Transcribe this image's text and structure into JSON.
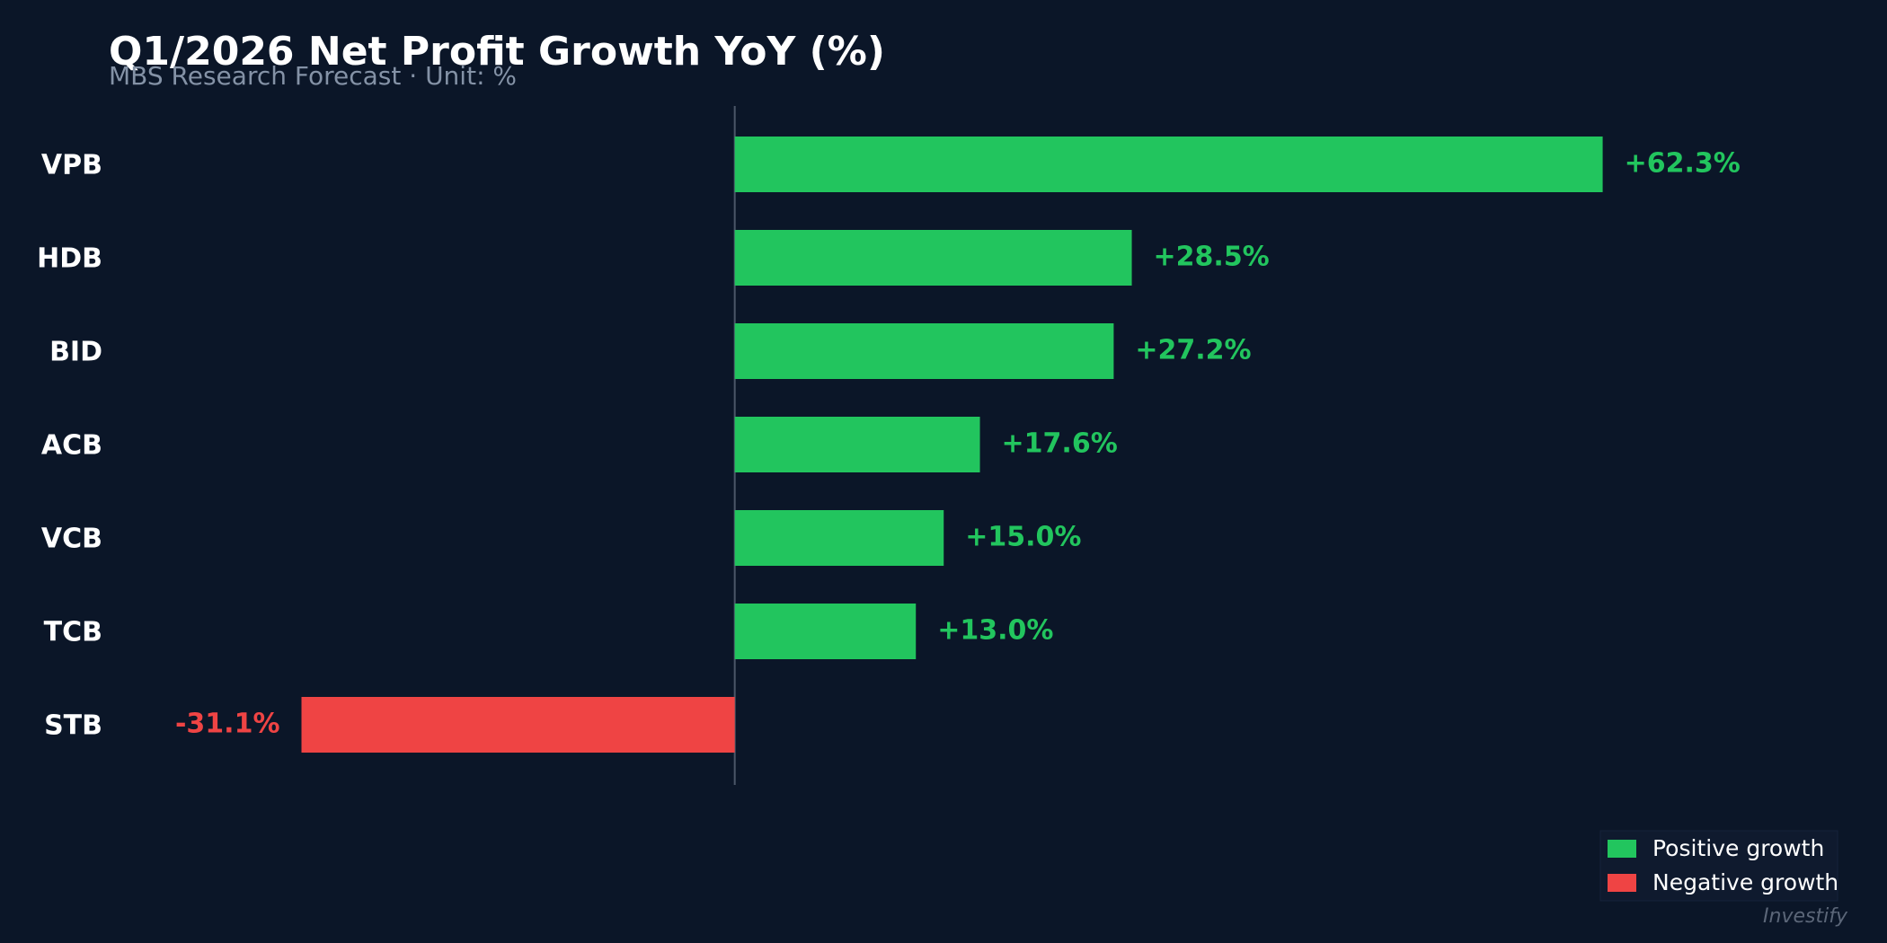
{
  "chart_data": {
    "type": "hbar",
    "title": "Q1/2026 Net Profit Growth YoY (%)",
    "subtitle": "MBS Research Forecast · Unit: %",
    "categories": [
      "VPB",
      "HDB",
      "BID",
      "ACB",
      "VCB",
      "TCB",
      "STB"
    ],
    "values": [
      62.3,
      28.5,
      27.2,
      17.6,
      15.0,
      13.0,
      -31.1
    ],
    "value_labels": [
      "+62.3%",
      "+28.5%",
      "+27.2%",
      "+17.6%",
      "+15.0%",
      "+13.0%",
      "-31.1%"
    ],
    "xlim": [
      -45,
      80
    ],
    "legend": {
      "position": "lower right",
      "entries": [
        {
          "name": "Positive growth",
          "color": "#22c55e"
        },
        {
          "name": "Negative growth",
          "color": "#ef4444"
        }
      ]
    },
    "watermark": "Investify"
  }
}
